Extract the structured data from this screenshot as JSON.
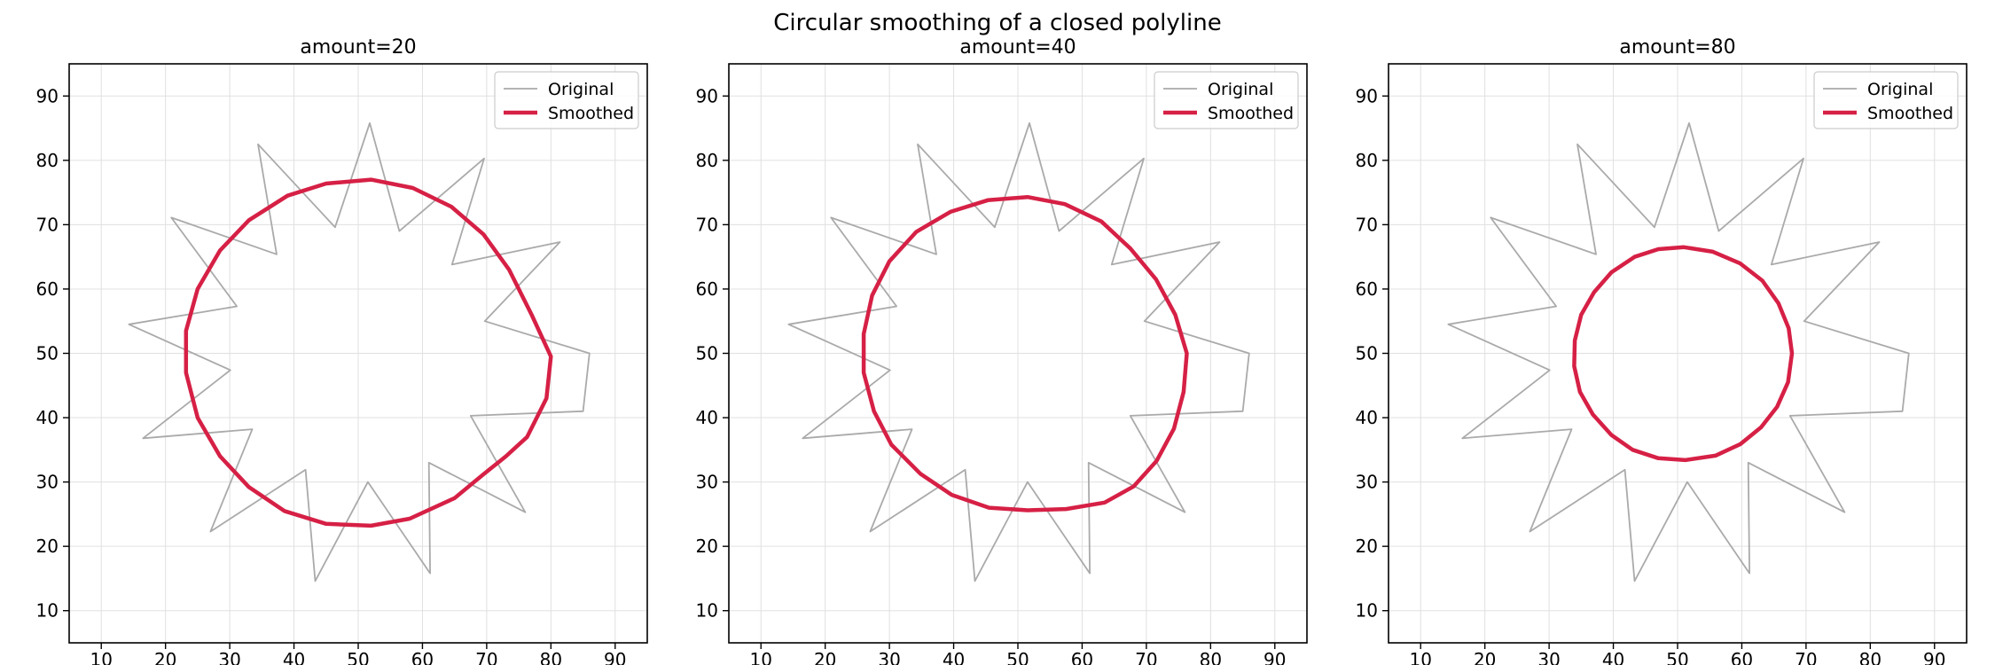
{
  "figure": {
    "title": "Circular smoothing of a closed polyline"
  },
  "colors": {
    "original": "#aaaaaa",
    "smoothed": "#d62045",
    "grid": "#e0e0e0",
    "axis": "#000000"
  },
  "legend": {
    "original_label": "Original",
    "smoothed_label": "Smoothed",
    "placement": "top-right"
  },
  "chart_data": [
    {
      "type": "line",
      "title": "amount=20",
      "xlim": [
        5,
        95
      ],
      "ylim": [
        5,
        95
      ],
      "xticks": [
        10,
        20,
        30,
        40,
        50,
        60,
        70,
        80,
        90
      ],
      "yticks": [
        10,
        20,
        30,
        40,
        50,
        60,
        70,
        80,
        90
      ],
      "grid": true,
      "series": [
        {
          "name": "Original",
          "closed": true,
          "points": [
            [
              86,
              50
            ],
            [
              85,
              41
            ],
            [
              67.5,
              40.3
            ],
            [
              76,
              25.3
            ],
            [
              61,
              33
            ],
            [
              61.2,
              15.8
            ],
            [
              51.5,
              30
            ],
            [
              43.3,
              14.6
            ],
            [
              41.8,
              31.9
            ],
            [
              27,
              22.3
            ],
            [
              33.5,
              38.2
            ],
            [
              16.5,
              36.8
            ],
            [
              30.1,
              47.4
            ],
            [
              14.3,
              54.5
            ],
            [
              31.1,
              57.3
            ],
            [
              20.9,
              71.1
            ],
            [
              37.3,
              65.4
            ],
            [
              34.4,
              82.5
            ],
            [
              46.4,
              69.6
            ],
            [
              51.8,
              85.8
            ],
            [
              56.4,
              69
            ],
            [
              69.6,
              80.3
            ],
            [
              64.6,
              63.8
            ],
            [
              81.4,
              67.3
            ],
            [
              69.7,
              55
            ]
          ]
        },
        {
          "name": "Smoothed",
          "closed": true,
          "points": [
            [
              80,
              49.5
            ],
            [
              79.3,
              43
            ],
            [
              76.3,
              37
            ],
            [
              73,
              34
            ],
            [
              69.5,
              31.2
            ],
            [
              65,
              27.5
            ],
            [
              58,
              24.3
            ],
            [
              52,
              23.2
            ],
            [
              45,
              23.5
            ],
            [
              38.5,
              25.5
            ],
            [
              33,
              29.2
            ],
            [
              28.5,
              34
            ],
            [
              25,
              40
            ],
            [
              23.2,
              47
            ],
            [
              23.2,
              53.5
            ],
            [
              25,
              60
            ],
            [
              28.5,
              66
            ],
            [
              33,
              70.7
            ],
            [
              39,
              74.5
            ],
            [
              45,
              76.4
            ],
            [
              52,
              77
            ],
            [
              58.5,
              75.7
            ],
            [
              64.5,
              72.8
            ],
            [
              69.5,
              68.5
            ],
            [
              73.5,
              63
            ],
            [
              77,
              56
            ]
          ]
        }
      ]
    },
    {
      "type": "line",
      "title": "amount=40",
      "xlim": [
        5,
        95
      ],
      "ylim": [
        5,
        95
      ],
      "xticks": [
        10,
        20,
        30,
        40,
        50,
        60,
        70,
        80,
        90
      ],
      "yticks": [
        10,
        20,
        30,
        40,
        50,
        60,
        70,
        80,
        90
      ],
      "grid": true,
      "series": [
        {
          "name": "Original",
          "closed": true,
          "points": [
            [
              86,
              50
            ],
            [
              85,
              41
            ],
            [
              67.5,
              40.3
            ],
            [
              76,
              25.3
            ],
            [
              61,
              33
            ],
            [
              61.2,
              15.8
            ],
            [
              51.5,
              30
            ],
            [
              43.3,
              14.6
            ],
            [
              41.8,
              31.9
            ],
            [
              27,
              22.3
            ],
            [
              33.5,
              38.2
            ],
            [
              16.5,
              36.8
            ],
            [
              30.1,
              47.4
            ],
            [
              14.3,
              54.5
            ],
            [
              31.1,
              57.3
            ],
            [
              20.9,
              71.1
            ],
            [
              37.3,
              65.4
            ],
            [
              34.4,
              82.5
            ],
            [
              46.4,
              69.6
            ],
            [
              51.8,
              85.8
            ],
            [
              56.4,
              69
            ],
            [
              69.6,
              80.3
            ],
            [
              64.6,
              63.8
            ],
            [
              81.4,
              67.3
            ],
            [
              69.7,
              55
            ]
          ]
        },
        {
          "name": "Smoothed",
          "closed": true,
          "points": [
            [
              76.3,
              50
            ],
            [
              75.8,
              44
            ],
            [
              74.3,
              38.3
            ],
            [
              71.6,
              33.3
            ],
            [
              68,
              29.3
            ],
            [
              63.5,
              26.8
            ],
            [
              57.5,
              25.8
            ],
            [
              51.5,
              25.6
            ],
            [
              45.5,
              26
            ],
            [
              39.7,
              28
            ],
            [
              34.8,
              31.3
            ],
            [
              30.3,
              35.8
            ],
            [
              27.6,
              41
            ],
            [
              26,
              47
            ],
            [
              26,
              53
            ],
            [
              27.3,
              59
            ],
            [
              30,
              64.3
            ],
            [
              34.2,
              68.9
            ],
            [
              39.5,
              72
            ],
            [
              45.3,
              73.8
            ],
            [
              51.5,
              74.3
            ],
            [
              57.3,
              73.2
            ],
            [
              63,
              70.5
            ],
            [
              67.5,
              66.3
            ],
            [
              71.5,
              61.5
            ],
            [
              74.5,
              56
            ]
          ]
        }
      ]
    },
    {
      "type": "line",
      "title": "amount=80",
      "xlim": [
        5,
        95
      ],
      "ylim": [
        5,
        95
      ],
      "xticks": [
        10,
        20,
        30,
        40,
        50,
        60,
        70,
        80,
        90
      ],
      "yticks": [
        10,
        20,
        30,
        40,
        50,
        60,
        70,
        80,
        90
      ],
      "grid": true,
      "series": [
        {
          "name": "Original",
          "closed": true,
          "points": [
            [
              86,
              50
            ],
            [
              85,
              41
            ],
            [
              67.5,
              40.3
            ],
            [
              76,
              25.3
            ],
            [
              61,
              33
            ],
            [
              61.2,
              15.8
            ],
            [
              51.5,
              30
            ],
            [
              43.3,
              14.6
            ],
            [
              41.8,
              31.9
            ],
            [
              27,
              22.3
            ],
            [
              33.5,
              38.2
            ],
            [
              16.5,
              36.8
            ],
            [
              30.1,
              47.4
            ],
            [
              14.3,
              54.5
            ],
            [
              31.1,
              57.3
            ],
            [
              20.9,
              71.1
            ],
            [
              37.3,
              65.4
            ],
            [
              34.4,
              82.5
            ],
            [
              46.4,
              69.6
            ],
            [
              51.8,
              85.8
            ],
            [
              56.4,
              69
            ],
            [
              69.6,
              80.3
            ],
            [
              64.6,
              63.8
            ],
            [
              81.4,
              67.3
            ],
            [
              69.7,
              55
            ]
          ]
        },
        {
          "name": "Smoothed",
          "closed": true,
          "points": [
            [
              67.8,
              50
            ],
            [
              67.2,
              45.5
            ],
            [
              65.5,
              41.7
            ],
            [
              63,
              38.5
            ],
            [
              59.8,
              35.9
            ],
            [
              55.9,
              34.1
            ],
            [
              51.2,
              33.4
            ],
            [
              47,
              33.7
            ],
            [
              43,
              35
            ],
            [
              39.7,
              37.3
            ],
            [
              36.8,
              40.5
            ],
            [
              34.8,
              44
            ],
            [
              33.9,
              48
            ],
            [
              34,
              52
            ],
            [
              35,
              56
            ],
            [
              37,
              59.5
            ],
            [
              39.7,
              62.6
            ],
            [
              43.3,
              65
            ],
            [
              47,
              66.2
            ],
            [
              51,
              66.5
            ],
            [
              55.5,
              65.8
            ],
            [
              59.7,
              64
            ],
            [
              63.2,
              61.3
            ],
            [
              65.7,
              57.8
            ],
            [
              67.3,
              53.9
            ]
          ]
        }
      ]
    }
  ]
}
